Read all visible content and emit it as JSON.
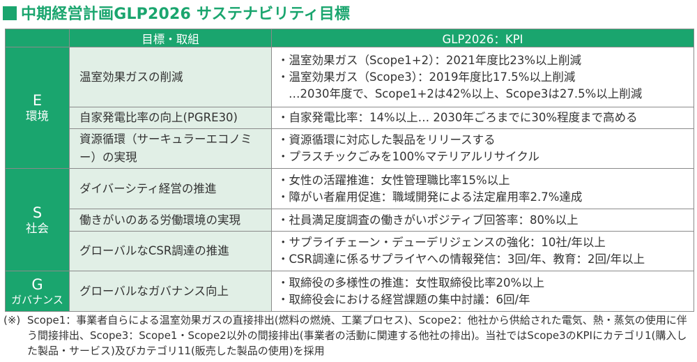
{
  "title": "中期経営計画GLP2026 サステナビリティ目標",
  "header": {
    "col_goal": "目標・取組",
    "col_kpi": "GLP2026：KPI"
  },
  "categories": [
    {
      "letter": "E",
      "name": "環境",
      "rows": [
        {
          "goal": "温室効果ガスの削減",
          "kpis": [
            "・温室効果ガス（Scope1+2）：2021年度比23%以上削減",
            "・温室効果ガス（Scope3）：2019年度比17.5%以上削減",
            "…2030年度で、Scope1+2は42%以上、Scope3は27.5%以上削減"
          ]
        },
        {
          "goal": "自家発電比率の向上(PGRE30)",
          "kpis": [
            "・自家発電比率：14%以上… 2030年ごろまでに30%程度まで高める"
          ]
        },
        {
          "goal": "資源循環（サーキュラーエコノミー）の実現",
          "kpis": [
            "・資源循環に対応した製品をリリースする",
            "・プラスチックごみを100%マテリアルリサイクル"
          ]
        }
      ]
    },
    {
      "letter": "S",
      "name": "社会",
      "rows": [
        {
          "goal": "ダイバーシティ経営の推進",
          "kpis": [
            "・女性の活躍推進：女性管理職比率15%以上",
            "・障がい者雇用促進：職域開発による法定雇用率2.7%達成"
          ]
        },
        {
          "goal": "働きがいのある労働環境の実現",
          "kpis": [
            "・社員満足度調査の働きがいポジティブ回答率：80%以上"
          ]
        },
        {
          "goal": "グローバルなCSR調達の推進",
          "kpis": [
            "・サプライチェーン・デューデリジェンスの強化：10社/年以上",
            "・CSR調達に係るサプライヤへの情報発信：3回/年、教育：2回/年以上"
          ]
        }
      ]
    },
    {
      "letter": "G",
      "name": "ガバナンス",
      "rows": [
        {
          "goal": "グローバルなガバナンス向上",
          "kpis": [
            "・取締役の多様性の推進：女性取締役比率20%以上",
            "・取締役会における経営課題の集中討議：6回/年"
          ]
        }
      ]
    }
  ],
  "footnote": {
    "mark": "(※)",
    "text": "Scope1：事業者自らによる温室効果ガスの直接排出(燃料の燃焼、工業プロセス)、Scope2：他社から供給された電気、熱・蒸気の使用に伴う間接排出、Scope3：Scope1・Scope2以外の間接排出(事業者の活動に関連する他社の排出)。当社ではScope3のKPIにカテゴリ1(購入した製品・サービス)及びカテゴリ11(販売した製品の使用)を採用"
  },
  "colors": {
    "accent": "#1aa56e",
    "goal_bg": "#e1efe6",
    "border": "#8a8a8a",
    "text": "#333333"
  }
}
